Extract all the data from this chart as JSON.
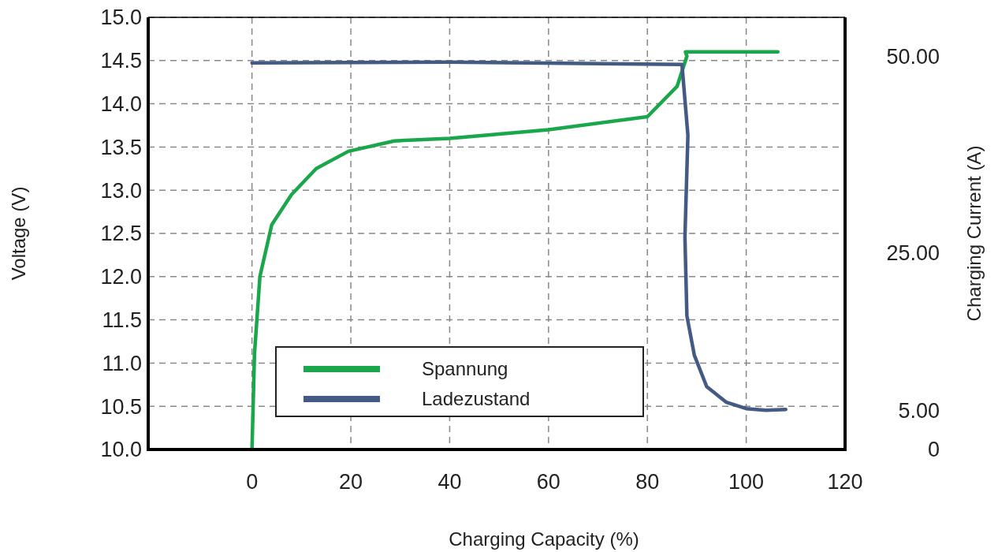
{
  "chart_data": {
    "type": "line",
    "xlabel": "Charging Capacity (%)",
    "ylabel": "Voltage (V)",
    "y2label": "Charging Current (A)",
    "xlim": [
      -21,
      120
    ],
    "xticks": [
      0,
      20,
      40,
      60,
      80,
      100,
      120
    ],
    "ylim": [
      10,
      15
    ],
    "yticks": [
      {
        "value": 10,
        "label": "10.0"
      },
      {
        "value": 10.5,
        "label": "10.5"
      },
      {
        "value": 11,
        "label": "11.0"
      },
      {
        "value": 11.5,
        "label": "11.5"
      },
      {
        "value": 12,
        "label": "12.0"
      },
      {
        "value": 12.5,
        "label": "12.5"
      },
      {
        "value": 13,
        "label": "13.0"
      },
      {
        "value": 13.5,
        "label": "13.5"
      },
      {
        "value": 14,
        "label": "14.0"
      },
      {
        "value": 14.5,
        "label": "14.5"
      },
      {
        "value": 15,
        "label": "15.0"
      }
    ],
    "y2lim": [
      0,
      55
    ],
    "y2ticks": [
      0,
      {
        "value": 5,
        "label": "5.00"
      },
      {
        "value": 25,
        "label": "25.00"
      },
      {
        "value": 50,
        "label": "50.00"
      }
    ],
    "grid": true,
    "legend": "bottom",
    "line_style": "solid",
    "series": [
      {
        "name": "Spannung",
        "color": "#1aa64a",
        "x": [
          0,
          0.5,
          1.6,
          4,
          8,
          13,
          19.5,
          28.8,
          40,
          60,
          80,
          86,
          88,
          87.7,
          95,
          106.4
        ],
        "values": [
          10,
          11.1,
          12,
          12.6,
          12.95,
          13.25,
          13.45,
          13.57,
          13.6,
          13.7,
          13.85,
          14.2,
          14.55,
          14.6,
          14.6,
          14.6
        ]
      },
      {
        "name": "Ladezustand",
        "color": "#435a85",
        "axis": "y2",
        "x": [
          0,
          40,
          87,
          88.2,
          87.6,
          88,
          89.5,
          92,
          96,
          100,
          104,
          108
        ],
        "values": [
          49.2,
          49.3,
          49,
          40,
          27,
          17,
          12,
          8,
          6,
          5.2,
          5,
          5.1
        ]
      }
    ]
  }
}
